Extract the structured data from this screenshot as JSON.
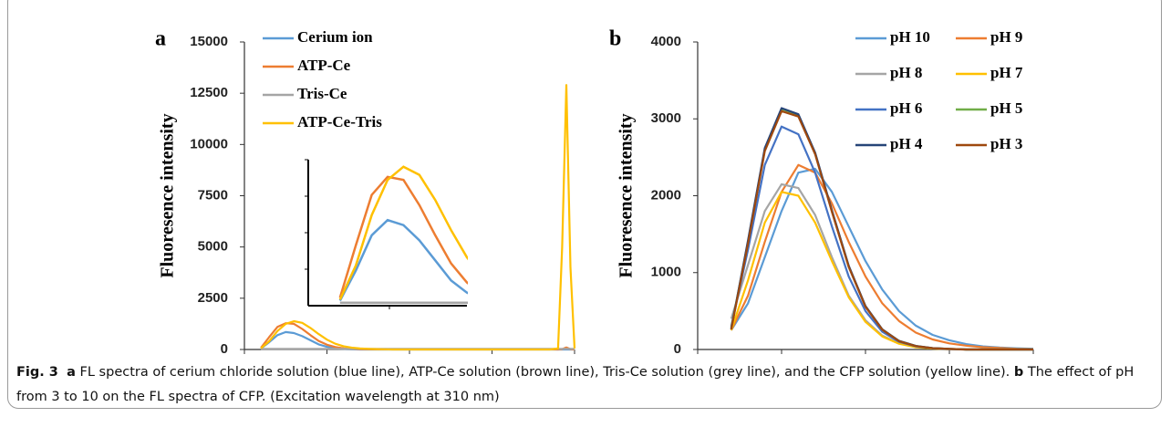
{
  "chart_data": [
    {
      "type": "line",
      "panel_label": "a",
      "y_label": "Fluoresence intensity",
      "x": [
        320,
        330,
        340,
        350,
        360,
        370,
        380,
        390,
        400,
        410,
        420,
        430,
        440,
        450,
        460,
        470,
        480,
        490,
        500,
        510,
        520,
        530,
        540,
        550,
        560,
        570,
        580,
        590,
        600,
        610,
        620,
        630,
        640,
        650,
        660,
        670,
        680,
        685,
        690,
        695,
        700
      ],
      "series": [
        {
          "name": "Cerium ion",
          "color": "#5b9bd5",
          "values": [
            50,
            350,
            700,
            850,
            800,
            650,
            450,
            250,
            130,
            60,
            30,
            10,
            0,
            0,
            0,
            0,
            0,
            0,
            0,
            0,
            0,
            0,
            0,
            0,
            0,
            0,
            0,
            0,
            0,
            0,
            0,
            0,
            0,
            0,
            0,
            0,
            0,
            0,
            0,
            0,
            0
          ]
        },
        {
          "name": "ATP-Ce",
          "color": "#ed7d31",
          "values": [
            80,
            600,
            1100,
            1280,
            1250,
            1000,
            700,
            420,
            230,
            120,
            60,
            30,
            10,
            10,
            10,
            10,
            10,
            10,
            10,
            10,
            10,
            10,
            10,
            10,
            10,
            10,
            10,
            10,
            10,
            10,
            10,
            10,
            10,
            10,
            10,
            10,
            0,
            20,
            100,
            20,
            0
          ]
        },
        {
          "name": "Tris-Ce",
          "color": "#a5a5a5",
          "values": [
            30,
            30,
            30,
            30,
            30,
            30,
            30,
            30,
            30,
            30,
            30,
            30,
            30,
            30,
            30,
            30,
            30,
            30,
            30,
            30,
            30,
            30,
            30,
            30,
            30,
            30,
            30,
            30,
            30,
            30,
            30,
            30,
            30,
            30,
            30,
            30,
            30,
            30,
            30,
            30,
            30
          ]
        },
        {
          "name": "ATP-Ce-Tris",
          "color": "#ffc000",
          "values": [
            60,
            400,
            900,
            1250,
            1380,
            1300,
            1050,
            750,
            480,
            280,
            160,
            90,
            50,
            30,
            20,
            10,
            0,
            0,
            0,
            0,
            0,
            0,
            0,
            0,
            0,
            0,
            0,
            0,
            0,
            0,
            0,
            0,
            0,
            0,
            0,
            0,
            50,
            5000,
            12900,
            4000,
            50
          ]
        }
      ],
      "xlim": [
        300,
        700
      ],
      "xticks": [
        300,
        400,
        500,
        600,
        700
      ],
      "ylim": [
        0,
        15000
      ],
      "yticks": [
        0,
        2500,
        5000,
        7500,
        10000,
        12500,
        15000
      ],
      "legend": "upper left",
      "inset_xlim": [
        300,
        400
      ],
      "inset_ylim": [
        0,
        1450
      ]
    },
    {
      "type": "line",
      "panel_label": "b",
      "y_label": "Fluoresence intensity",
      "x": [
        320,
        330,
        340,
        350,
        360,
        370,
        380,
        390,
        400,
        410,
        420,
        430,
        440,
        450,
        460,
        470,
        480,
        490,
        500
      ],
      "series": [
        {
          "name": "pH 10",
          "color": "#5b9bd5",
          "values": [
            250,
            600,
            1200,
            1800,
            2300,
            2350,
            2050,
            1600,
            1150,
            780,
            500,
            310,
            190,
            120,
            70,
            40,
            25,
            15,
            10
          ]
        },
        {
          "name": "pH 9",
          "color": "#ed7d31",
          "values": [
            250,
            700,
            1400,
            2050,
            2400,
            2300,
            1900,
            1400,
            950,
            600,
            370,
            220,
            130,
            80,
            50,
            30,
            20,
            10,
            5
          ]
        },
        {
          "name": "pH 8",
          "color": "#a5a5a5",
          "values": [
            400,
            1100,
            1800,
            2150,
            2100,
            1750,
            1200,
            700,
            380,
            180,
            80,
            35,
            15,
            5,
            0,
            0,
            0,
            0,
            0
          ]
        },
        {
          "name": "pH 7",
          "color": "#ffc000",
          "values": [
            250,
            900,
            1650,
            2050,
            2000,
            1650,
            1150,
            680,
            360,
            170,
            75,
            30,
            12,
            5,
            0,
            0,
            0,
            0,
            0
          ]
        },
        {
          "name": "pH 6",
          "color": "#4472c4",
          "values": [
            300,
            1300,
            2400,
            2900,
            2800,
            2300,
            1600,
            950,
            500,
            230,
            100,
            40,
            15,
            5,
            0,
            0,
            0,
            0,
            0
          ]
        },
        {
          "name": "pH 5",
          "color": "#70ad47",
          "values": [
            280,
            1400,
            2600,
            3130,
            3050,
            2550,
            1800,
            1080,
            560,
            260,
            110,
            45,
            18,
            8,
            0,
            0,
            0,
            0,
            0
          ]
        },
        {
          "name": "pH 4",
          "color": "#264478",
          "values": [
            270,
            1420,
            2620,
            3140,
            3060,
            2560,
            1810,
            1090,
            565,
            262,
            112,
            46,
            18,
            8,
            0,
            0,
            0,
            0,
            0
          ]
        },
        {
          "name": "pH 3",
          "color": "#9e480e",
          "values": [
            260,
            1380,
            2580,
            3100,
            3030,
            2540,
            1790,
            1075,
            555,
            258,
            108,
            44,
            17,
            7,
            0,
            0,
            0,
            0,
            0
          ]
        }
      ],
      "xlim": [
        300,
        500
      ],
      "xticks": [
        300,
        350,
        400,
        450,
        500
      ],
      "ylim": [
        0,
        4000
      ],
      "yticks": [
        0,
        1000,
        2000,
        3000,
        4000
      ],
      "legend": "upper right"
    }
  ],
  "caption": {
    "label": "Fig. 3",
    "a_marker": "a",
    "a_text": "FL spectra of cerium chloride solution (blue line), ATP-Ce solution (brown line), Tris-Ce solution (grey line), and the CFP solution (yellow line).",
    "b_marker": "b",
    "b_text": "The effect of pH from 3 to 10 on the FL spectra of CFP. (Excitation wavelength at 310 nm)"
  }
}
